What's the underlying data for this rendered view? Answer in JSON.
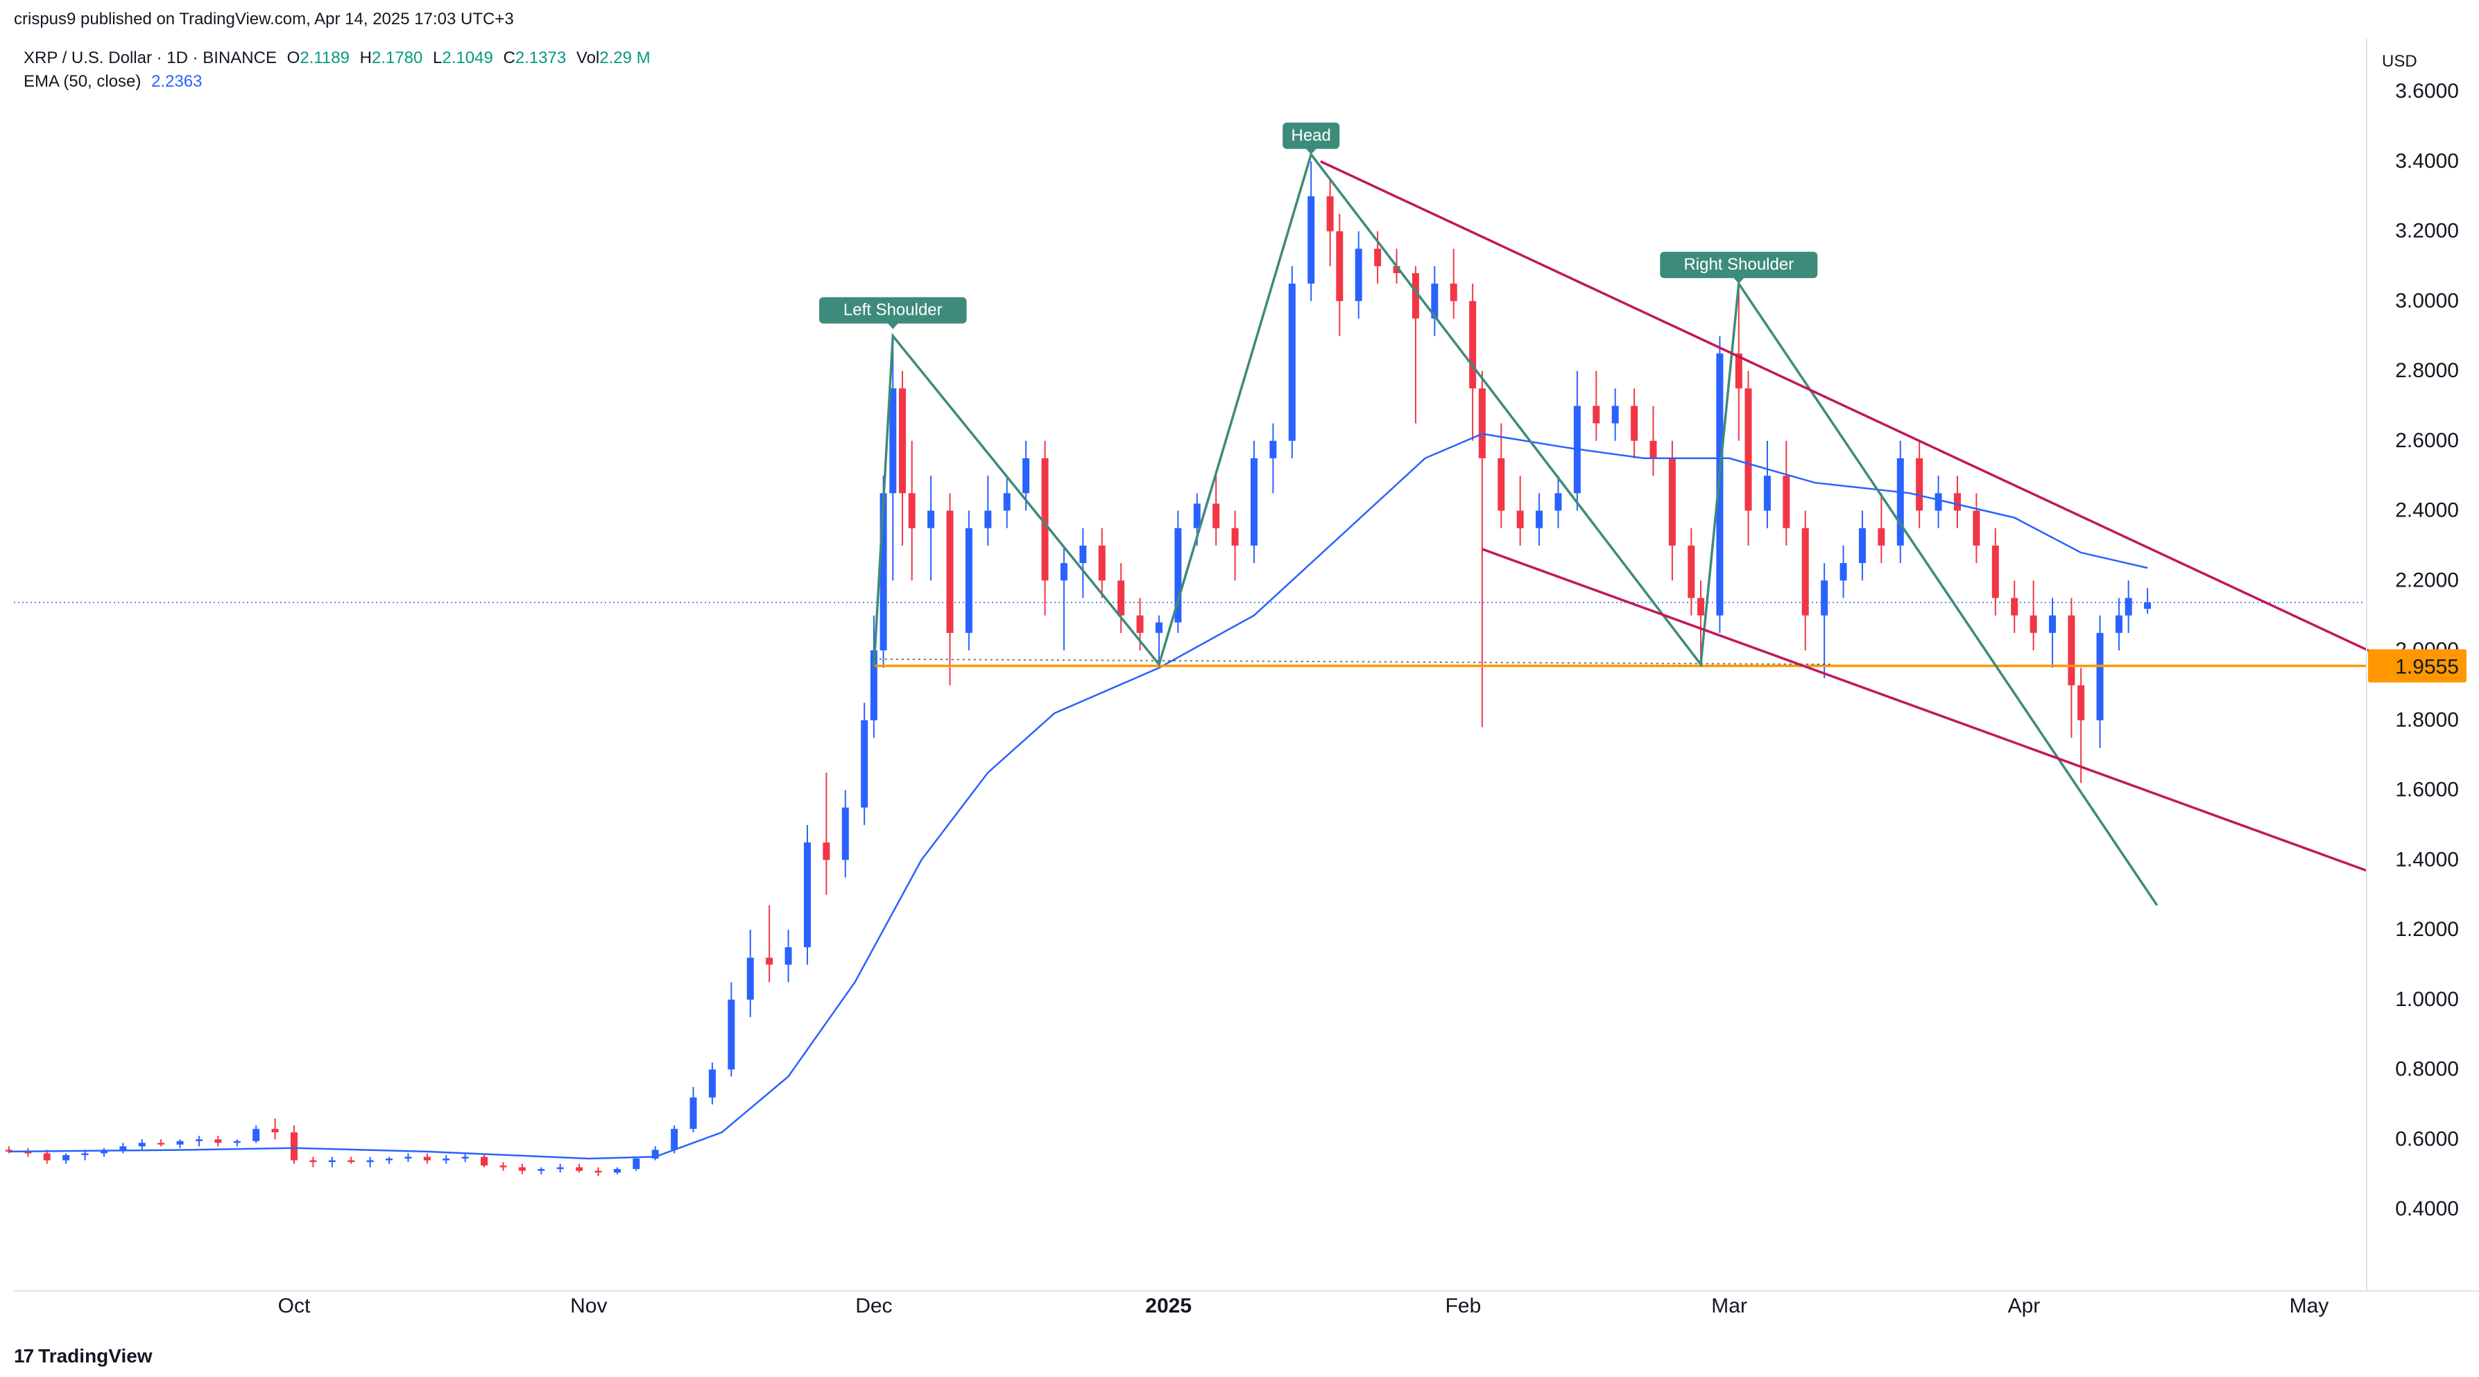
{
  "header": {
    "published": "crispus9 published on TradingView.com, Apr 14, 2025 17:03 UTC+3",
    "symbol": "XRP / U.S. Dollar · 1D · BINANCE",
    "open_label": "O",
    "open": "2.1189",
    "high_label": "H",
    "high": "2.1780",
    "low_label": "L",
    "low": "2.1049",
    "close_label": "C",
    "close": "2.1373",
    "vol_label": "Vol",
    "vol": "2.29 M",
    "ema_label": "EMA (50, close)",
    "ema_value": "2.2363"
  },
  "brand": {
    "logo": "17",
    "name": "TradingView"
  },
  "colors": {
    "up": "#2962ff",
    "down": "#f23645",
    "ema": "#2962ff",
    "pattern": "#3d8b7a",
    "channel": "#c2185b",
    "support": "#ff9800",
    "last_price": "#2962ff"
  },
  "chart_data": {
    "type": "candlestick",
    "currency": "USD",
    "ylim": [
      0.3,
      3.75
    ],
    "y_ticks": [
      "3.6000",
      "3.4000",
      "3.2000",
      "3.0000",
      "2.8000",
      "2.6000",
      "2.4000",
      "2.2000",
      "2.0000",
      "1.8000",
      "1.6000",
      "1.4000",
      "1.2000",
      "1.0000",
      "0.8000",
      "0.6000",
      "0.4000"
    ],
    "x_labels": [
      {
        "label": "Oct",
        "date": "2024-10-01",
        "bold": false
      },
      {
        "label": "Nov",
        "date": "2024-11-01",
        "bold": false
      },
      {
        "label": "Dec",
        "date": "2024-12-01",
        "bold": false
      },
      {
        "label": "2025",
        "date": "2025-01-01",
        "bold": true
      },
      {
        "label": "Feb",
        "date": "2025-02-01",
        "bold": false
      },
      {
        "label": "Mar",
        "date": "2025-03-01",
        "bold": false
      },
      {
        "label": "Apr",
        "date": "2025-04-01",
        "bold": false
      },
      {
        "label": "May",
        "date": "2025-05-01",
        "bold": false
      }
    ],
    "support_level": {
      "value": 1.9555,
      "label": "1.9555"
    },
    "last_price": 2.1373,
    "annotations": [
      {
        "text": "Left Shoulder",
        "date": "2024-12-03",
        "price": 2.9
      },
      {
        "text": "Head",
        "date": "2025-01-16",
        "price": 3.4
      },
      {
        "text": "Right Shoulder",
        "date": "2025-03-02",
        "price": 3.03
      }
    ],
    "head_shoulders_path": [
      [
        "2024-12-01",
        1.95
      ],
      [
        "2024-12-03",
        2.9
      ],
      [
        "2024-12-31",
        1.96
      ],
      [
        "2025-01-16",
        3.42
      ],
      [
        "2025-02-26",
        1.96
      ],
      [
        "2025-03-02",
        3.05
      ],
      [
        "2025-04-15",
        1.27
      ]
    ],
    "trendlines": [
      {
        "name": "upper",
        "from": [
          "2025-01-17",
          3.4
        ],
        "to": [
          "2025-05-08",
          1.99
        ]
      },
      {
        "name": "lower",
        "from": [
          "2025-02-03",
          2.29
        ],
        "to": [
          "2025-05-07",
          1.37
        ]
      }
    ],
    "candles": [
      [
        "2024-09-01",
        0.57,
        0.58,
        0.56,
        0.565
      ],
      [
        "2024-09-03",
        0.565,
        0.575,
        0.55,
        0.56
      ],
      [
        "2024-09-05",
        0.56,
        0.57,
        0.53,
        0.54
      ],
      [
        "2024-09-07",
        0.54,
        0.56,
        0.53,
        0.555
      ],
      [
        "2024-09-09",
        0.555,
        0.57,
        0.54,
        0.56
      ],
      [
        "2024-09-11",
        0.56,
        0.575,
        0.55,
        0.57
      ],
      [
        "2024-09-13",
        0.57,
        0.59,
        0.56,
        0.58
      ],
      [
        "2024-09-15",
        0.58,
        0.6,
        0.57,
        0.59
      ],
      [
        "2024-09-17",
        0.59,
        0.6,
        0.58,
        0.585
      ],
      [
        "2024-09-19",
        0.585,
        0.6,
        0.575,
        0.595
      ],
      [
        "2024-09-21",
        0.595,
        0.61,
        0.58,
        0.6
      ],
      [
        "2024-09-23",
        0.6,
        0.61,
        0.58,
        0.59
      ],
      [
        "2024-09-25",
        0.59,
        0.6,
        0.58,
        0.595
      ],
      [
        "2024-09-27",
        0.595,
        0.64,
        0.59,
        0.63
      ],
      [
        "2024-09-29",
        0.63,
        0.66,
        0.6,
        0.62
      ],
      [
        "2024-10-01",
        0.62,
        0.64,
        0.53,
        0.54
      ],
      [
        "2024-10-03",
        0.54,
        0.55,
        0.52,
        0.535
      ],
      [
        "2024-10-05",
        0.535,
        0.55,
        0.52,
        0.54
      ],
      [
        "2024-10-07",
        0.54,
        0.55,
        0.53,
        0.535
      ],
      [
        "2024-10-09",
        0.535,
        0.55,
        0.52,
        0.54
      ],
      [
        "2024-10-11",
        0.54,
        0.55,
        0.53,
        0.545
      ],
      [
        "2024-10-13",
        0.545,
        0.56,
        0.535,
        0.55
      ],
      [
        "2024-10-15",
        0.55,
        0.56,
        0.53,
        0.54
      ],
      [
        "2024-10-17",
        0.54,
        0.555,
        0.53,
        0.545
      ],
      [
        "2024-10-19",
        0.545,
        0.56,
        0.535,
        0.55
      ],
      [
        "2024-10-21",
        0.55,
        0.56,
        0.52,
        0.525
      ],
      [
        "2024-10-23",
        0.525,
        0.535,
        0.51,
        0.52
      ],
      [
        "2024-10-25",
        0.52,
        0.53,
        0.5,
        0.51
      ],
      [
        "2024-10-27",
        0.51,
        0.52,
        0.5,
        0.515
      ],
      [
        "2024-10-29",
        0.515,
        0.53,
        0.505,
        0.52
      ],
      [
        "2024-10-31",
        0.52,
        0.53,
        0.505,
        0.51
      ],
      [
        "2024-11-02",
        0.51,
        0.52,
        0.495,
        0.505
      ],
      [
        "2024-11-04",
        0.505,
        0.52,
        0.5,
        0.515
      ],
      [
        "2024-11-06",
        0.515,
        0.55,
        0.51,
        0.545
      ],
      [
        "2024-11-08",
        0.545,
        0.58,
        0.54,
        0.57
      ],
      [
        "2024-11-10",
        0.57,
        0.64,
        0.56,
        0.63
      ],
      [
        "2024-11-12",
        0.63,
        0.75,
        0.62,
        0.72
      ],
      [
        "2024-11-14",
        0.72,
        0.82,
        0.7,
        0.8
      ],
      [
        "2024-11-16",
        0.8,
        1.05,
        0.78,
        1.0
      ],
      [
        "2024-11-18",
        1.0,
        1.2,
        0.95,
        1.12
      ],
      [
        "2024-11-20",
        1.12,
        1.27,
        1.05,
        1.1
      ],
      [
        "2024-11-22",
        1.1,
        1.2,
        1.05,
        1.15
      ],
      [
        "2024-11-24",
        1.15,
        1.5,
        1.1,
        1.45
      ],
      [
        "2024-11-26",
        1.45,
        1.65,
        1.3,
        1.4
      ],
      [
        "2024-11-28",
        1.4,
        1.6,
        1.35,
        1.55
      ],
      [
        "2024-11-30",
        1.55,
        1.85,
        1.5,
        1.8
      ],
      [
        "2024-12-01",
        1.8,
        2.1,
        1.75,
        2.0
      ],
      [
        "2024-12-02",
        2.0,
        2.5,
        1.95,
        2.45
      ],
      [
        "2024-12-03",
        2.45,
        2.9,
        2.2,
        2.75
      ],
      [
        "2024-12-04",
        2.75,
        2.8,
        2.3,
        2.45
      ],
      [
        "2024-12-05",
        2.45,
        2.6,
        2.2,
        2.35
      ],
      [
        "2024-12-07",
        2.35,
        2.5,
        2.2,
        2.4
      ],
      [
        "2024-12-09",
        2.4,
        2.45,
        1.9,
        2.05
      ],
      [
        "2024-12-11",
        2.05,
        2.4,
        2.0,
        2.35
      ],
      [
        "2024-12-13",
        2.35,
        2.5,
        2.3,
        2.4
      ],
      [
        "2024-12-15",
        2.4,
        2.5,
        2.35,
        2.45
      ],
      [
        "2024-12-17",
        2.45,
        2.6,
        2.4,
        2.55
      ],
      [
        "2024-12-19",
        2.55,
        2.6,
        2.1,
        2.2
      ],
      [
        "2024-12-21",
        2.2,
        2.3,
        2.0,
        2.25
      ],
      [
        "2024-12-23",
        2.25,
        2.35,
        2.15,
        2.3
      ],
      [
        "2024-12-25",
        2.3,
        2.35,
        2.15,
        2.2
      ],
      [
        "2024-12-27",
        2.2,
        2.25,
        2.05,
        2.1
      ],
      [
        "2024-12-29",
        2.1,
        2.15,
        2.0,
        2.05
      ],
      [
        "2024-12-31",
        2.05,
        2.1,
        1.97,
        2.08
      ],
      [
        "2025-01-02",
        2.08,
        2.4,
        2.05,
        2.35
      ],
      [
        "2025-01-04",
        2.35,
        2.45,
        2.3,
        2.42
      ],
      [
        "2025-01-06",
        2.42,
        2.5,
        2.3,
        2.35
      ],
      [
        "2025-01-08",
        2.35,
        2.4,
        2.2,
        2.3
      ],
      [
        "2025-01-10",
        2.3,
        2.6,
        2.25,
        2.55
      ],
      [
        "2025-01-12",
        2.55,
        2.65,
        2.45,
        2.6
      ],
      [
        "2025-01-14",
        2.6,
        3.1,
        2.55,
        3.05
      ],
      [
        "2025-01-16",
        3.05,
        3.4,
        3.0,
        3.3
      ],
      [
        "2025-01-18",
        3.3,
        3.35,
        3.1,
        3.2
      ],
      [
        "2025-01-19",
        3.2,
        3.25,
        2.9,
        3.0
      ],
      [
        "2025-01-21",
        3.0,
        3.2,
        2.95,
        3.15
      ],
      [
        "2025-01-23",
        3.15,
        3.2,
        3.05,
        3.1
      ],
      [
        "2025-01-25",
        3.1,
        3.15,
        3.05,
        3.08
      ],
      [
        "2025-01-27",
        3.08,
        3.1,
        2.65,
        2.95
      ],
      [
        "2025-01-29",
        2.95,
        3.1,
        2.9,
        3.05
      ],
      [
        "2025-01-31",
        3.05,
        3.15,
        2.95,
        3.0
      ],
      [
        "2025-02-02",
        3.0,
        3.05,
        2.6,
        2.75
      ],
      [
        "2025-02-03",
        2.75,
        2.8,
        1.78,
        2.55
      ],
      [
        "2025-02-05",
        2.55,
        2.65,
        2.35,
        2.4
      ],
      [
        "2025-02-07",
        2.4,
        2.5,
        2.3,
        2.35
      ],
      [
        "2025-02-09",
        2.35,
        2.45,
        2.3,
        2.4
      ],
      [
        "2025-02-11",
        2.4,
        2.5,
        2.35,
        2.45
      ],
      [
        "2025-02-13",
        2.45,
        2.8,
        2.4,
        2.7
      ],
      [
        "2025-02-15",
        2.7,
        2.8,
        2.6,
        2.65
      ],
      [
        "2025-02-17",
        2.65,
        2.75,
        2.6,
        2.7
      ],
      [
        "2025-02-19",
        2.7,
        2.75,
        2.55,
        2.6
      ],
      [
        "2025-02-21",
        2.6,
        2.7,
        2.5,
        2.55
      ],
      [
        "2025-02-23",
        2.55,
        2.6,
        2.2,
        2.3
      ],
      [
        "2025-02-25",
        2.3,
        2.35,
        2.1,
        2.15
      ],
      [
        "2025-02-26",
        2.15,
        2.2,
        1.96,
        2.1
      ],
      [
        "2025-02-28",
        2.1,
        2.9,
        2.05,
        2.85
      ],
      [
        "2025-03-02",
        2.85,
        3.05,
        2.6,
        2.75
      ],
      [
        "2025-03-03",
        2.75,
        2.8,
        2.3,
        2.4
      ],
      [
        "2025-03-05",
        2.4,
        2.6,
        2.35,
        2.5
      ],
      [
        "2025-03-07",
        2.5,
        2.6,
        2.3,
        2.35
      ],
      [
        "2025-03-09",
        2.35,
        2.4,
        2.0,
        2.1
      ],
      [
        "2025-03-11",
        2.1,
        2.25,
        1.92,
        2.2
      ],
      [
        "2025-03-13",
        2.2,
        2.3,
        2.15,
        2.25
      ],
      [
        "2025-03-15",
        2.25,
        2.4,
        2.2,
        2.35
      ],
      [
        "2025-03-17",
        2.35,
        2.45,
        2.25,
        2.3
      ],
      [
        "2025-03-19",
        2.3,
        2.6,
        2.25,
        2.55
      ],
      [
        "2025-03-21",
        2.55,
        2.6,
        2.35,
        2.4
      ],
      [
        "2025-03-23",
        2.4,
        2.5,
        2.35,
        2.45
      ],
      [
        "2025-03-25",
        2.45,
        2.5,
        2.35,
        2.4
      ],
      [
        "2025-03-27",
        2.4,
        2.45,
        2.25,
        2.3
      ],
      [
        "2025-03-29",
        2.3,
        2.35,
        2.1,
        2.15
      ],
      [
        "2025-03-31",
        2.15,
        2.2,
        2.05,
        2.1
      ],
      [
        "2025-04-02",
        2.1,
        2.2,
        2.0,
        2.05
      ],
      [
        "2025-04-04",
        2.05,
        2.15,
        1.95,
        2.1
      ],
      [
        "2025-04-06",
        2.1,
        2.15,
        1.75,
        1.9
      ],
      [
        "2025-04-07",
        1.9,
        1.95,
        1.62,
        1.8
      ],
      [
        "2025-04-09",
        1.8,
        2.1,
        1.72,
        2.05
      ],
      [
        "2025-04-11",
        2.05,
        2.15,
        2.0,
        2.1
      ],
      [
        "2025-04-12",
        2.1,
        2.2,
        2.05,
        2.15
      ],
      [
        "2025-04-14",
        2.1189,
        2.178,
        2.1049,
        2.1373
      ]
    ],
    "ema50": [
      [
        "2024-09-01",
        0.565
      ],
      [
        "2024-09-20",
        0.57
      ],
      [
        "2024-10-01",
        0.575
      ],
      [
        "2024-10-15",
        0.565
      ],
      [
        "2024-11-01",
        0.545
      ],
      [
        "2024-11-08",
        0.55
      ],
      [
        "2024-11-15",
        0.62
      ],
      [
        "2024-11-22",
        0.78
      ],
      [
        "2024-11-29",
        1.05
      ],
      [
        "2024-12-06",
        1.4
      ],
      [
        "2024-12-13",
        1.65
      ],
      [
        "2024-12-20",
        1.82
      ],
      [
        "2024-12-31",
        1.95
      ],
      [
        "2025-01-10",
        2.1
      ],
      [
        "2025-01-20",
        2.35
      ],
      [
        "2025-01-28",
        2.55
      ],
      [
        "2025-02-03",
        2.62
      ],
      [
        "2025-02-12",
        2.58
      ],
      [
        "2025-02-20",
        2.55
      ],
      [
        "2025-03-01",
        2.55
      ],
      [
        "2025-03-10",
        2.48
      ],
      [
        "2025-03-20",
        2.45
      ],
      [
        "2025-03-31",
        2.38
      ],
      [
        "2025-04-07",
        2.28
      ],
      [
        "2025-04-14",
        2.236
      ]
    ]
  }
}
